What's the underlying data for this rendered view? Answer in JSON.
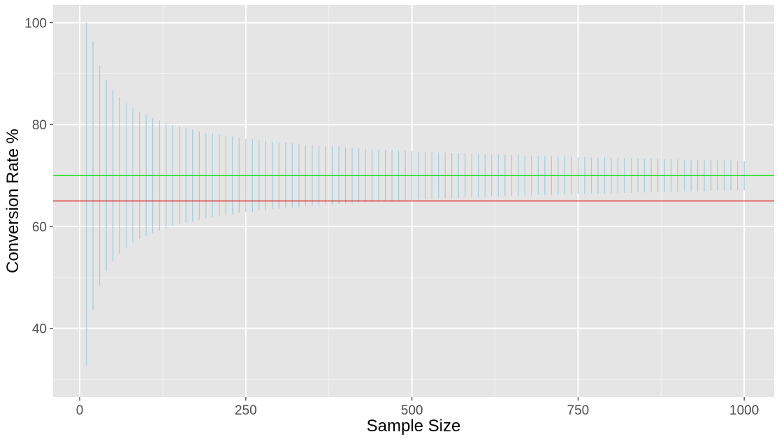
{
  "chart_data": {
    "type": "errorbar",
    "title": "",
    "xlabel": "Sample Size",
    "ylabel": "Conversion Rate %",
    "xlim": [
      -40,
      1045
    ],
    "ylim": [
      26.5,
      103.5
    ],
    "x_ticks": [
      0,
      250,
      500,
      750,
      1000
    ],
    "x_tick_labels": [
      "0",
      "250",
      "500",
      "750",
      "1000"
    ],
    "y_ticks": [
      40,
      60,
      80,
      100
    ],
    "y_tick_labels": [
      "40",
      "60",
      "80",
      "100"
    ],
    "grid": true,
    "legend": "none",
    "reference_lines": [
      {
        "y": 70,
        "color": "#00e000"
      },
      {
        "y": 65,
        "color": "#e00000"
      }
    ],
    "series": [
      {
        "color": "#a6cfdc",
        "x": [
          10,
          20,
          30,
          40,
          50,
          60,
          70,
          80,
          90,
          100,
          110,
          120,
          130,
          140,
          150,
          160,
          170,
          180,
          190,
          200,
          210,
          220,
          230,
          240,
          250,
          260,
          270,
          280,
          290,
          300,
          310,
          320,
          330,
          340,
          350,
          360,
          370,
          380,
          390,
          400,
          410,
          420,
          430,
          440,
          450,
          460,
          470,
          480,
          490,
          500,
          510,
          520,
          530,
          540,
          550,
          560,
          570,
          580,
          590,
          600,
          610,
          620,
          630,
          640,
          650,
          660,
          670,
          680,
          690,
          700,
          710,
          720,
          730,
          740,
          750,
          760,
          770,
          780,
          790,
          800,
          810,
          820,
          830,
          840,
          850,
          860,
          870,
          880,
          890,
          900,
          910,
          920,
          930,
          940,
          950,
          960,
          970,
          980,
          990,
          1000
        ],
        "lower": [
          32.6,
          43.6,
          48.4,
          51.2,
          53.2,
          54.6,
          55.8,
          56.7,
          57.5,
          58.1,
          58.7,
          59.2,
          59.6,
          60.1,
          60.4,
          60.7,
          61.0,
          61.3,
          61.6,
          61.8,
          62.0,
          62.2,
          62.4,
          62.6,
          62.8,
          62.9,
          63.1,
          63.2,
          63.4,
          63.5,
          63.6,
          63.7,
          63.8,
          64.0,
          64.1,
          64.2,
          64.3,
          64.3,
          64.4,
          64.5,
          64.6,
          64.7,
          64.8,
          64.8,
          64.9,
          65.0,
          65.0,
          65.1,
          65.2,
          65.2,
          65.3,
          65.3,
          65.4,
          65.5,
          65.5,
          65.6,
          65.6,
          65.7,
          65.7,
          65.8,
          65.8,
          65.9,
          65.9,
          65.9,
          66.0,
          66.0,
          66.1,
          66.1,
          66.2,
          66.2,
          66.2,
          66.3,
          66.3,
          66.3,
          66.4,
          66.4,
          66.5,
          66.5,
          66.5,
          66.5,
          66.6,
          66.6,
          66.6,
          66.7,
          66.7,
          66.7,
          66.8,
          66.8,
          66.8,
          66.8,
          66.9,
          66.9,
          66.9,
          66.9,
          67.0,
          67.0,
          67.0,
          67.0,
          67.1,
          67.1
        ],
        "upper": [
          100,
          96.4,
          91.6,
          88.8,
          86.8,
          85.4,
          84.2,
          83.3,
          82.5,
          81.9,
          81.3,
          80.8,
          80.4,
          79.9,
          79.6,
          79.3,
          79.0,
          78.7,
          78.4,
          78.2,
          78.0,
          77.8,
          77.6,
          77.4,
          77.2,
          77.1,
          76.9,
          76.8,
          76.6,
          76.5,
          76.4,
          76.3,
          76.2,
          76.0,
          75.9,
          75.8,
          75.7,
          75.7,
          75.6,
          75.5,
          75.4,
          75.3,
          75.2,
          75.2,
          75.1,
          75.0,
          75.0,
          74.9,
          74.8,
          74.8,
          74.7,
          74.7,
          74.6,
          74.5,
          74.5,
          74.4,
          74.4,
          74.3,
          74.3,
          74.2,
          74.2,
          74.1,
          74.1,
          74.1,
          74.0,
          74.0,
          73.9,
          73.9,
          73.8,
          73.8,
          73.8,
          73.7,
          73.7,
          73.7,
          73.6,
          73.6,
          73.5,
          73.5,
          73.5,
          73.5,
          73.4,
          73.4,
          73.4,
          73.3,
          73.3,
          73.3,
          73.2,
          73.2,
          73.2,
          73.2,
          73.1,
          73.1,
          73.1,
          73.1,
          73.0,
          73.0,
          73.0,
          73.0,
          72.9,
          72.9
        ]
      }
    ]
  }
}
